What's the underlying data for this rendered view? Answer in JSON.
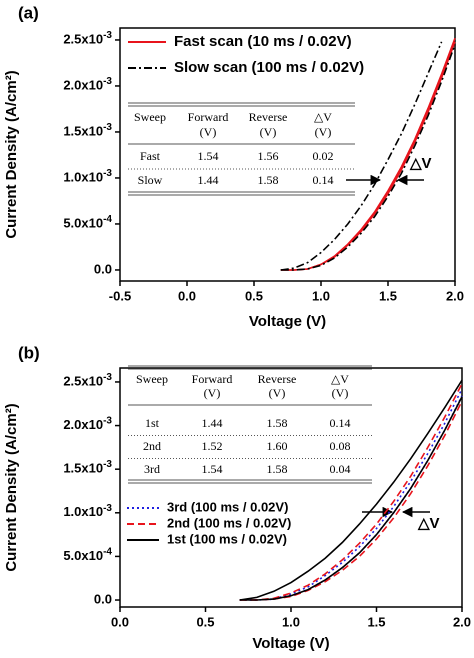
{
  "chart_data": [
    {
      "type": "line",
      "label": "(a)",
      "x_label": "Voltage (V)",
      "y_label": "Current Density (A/cm²)",
      "xlim": [
        -0.5,
        2.0
      ],
      "ylim": [
        -0.00012,
        0.00263
      ],
      "xticks": [
        -0.5,
        {
          "value": 0,
          "label": "0.0"
        },
        0.5,
        {
          "value": 1,
          "label": "1.0"
        },
        1.5,
        {
          "value": 2,
          "label": "2.0"
        }
      ],
      "yticks": [
        {
          "value": 0,
          "label": "0.0"
        },
        {
          "value": 0.0005,
          "label": "5.0x10",
          "exponent": "-4"
        },
        {
          "value": 0.001,
          "label": "1.0x10",
          "exponent": "-3"
        },
        {
          "value": 0.0015,
          "label": "1.5x10",
          "exponent": "-3"
        },
        {
          "value": 0.002,
          "label": "2.0x10",
          "exponent": "-3"
        },
        {
          "value": 0.0025,
          "label": "2.5x10",
          "exponent": "-3"
        }
      ],
      "x": [
        0.7,
        0.8,
        0.9,
        1.0,
        1.1,
        1.2,
        1.3,
        1.4,
        1.5,
        1.6,
        1.7,
        1.8,
        1.9,
        2.0
      ],
      "legend": "upper left",
      "series": [
        {
          "name": "Fast scan  (10 ms / 0.02V)",
          "color": "#e8141c",
          "dash": "solid",
          "forward": [
            0,
            0,
            1e-05,
            6e-05,
            0.00015,
            0.00028,
            0.00044,
            0.00063,
            0.00086,
            0.00112,
            0.00142,
            0.00176,
            0.00213,
            0.00252
          ],
          "reverse": [
            0,
            0,
            1e-05,
            6e-05,
            0.00014,
            0.00027,
            0.00042,
            0.00061,
            0.00083,
            0.00109,
            0.00139,
            0.00172,
            0.00209,
            0.00248
          ]
        },
        {
          "name": "Slow scan  (100 ms / 0.02V)",
          "color": "#000000",
          "dash": "dashdot",
          "forward": [
            0,
            2e-05,
            8e-05,
            0.00019,
            0.00033,
            0.0005,
            0.0007,
            0.00093,
            0.0012,
            0.00148,
            0.0018,
            0.00214,
            0.00248,
            null
          ],
          "reverse": [
            0,
            0,
            1e-05,
            5e-05,
            0.00013,
            0.00025,
            0.0004,
            0.00058,
            0.0008,
            0.00105,
            0.00135,
            0.00168,
            0.00205,
            0.00245
          ]
        }
      ],
      "table": {
        "header": [
          [
            "Sweep",
            "Forward",
            "Reverse",
            "△V"
          ],
          [
            "(V)",
            "(V)",
            "(V)"
          ]
        ],
        "rows": [
          [
            "Fast",
            "1.54",
            "1.56",
            "0.02"
          ],
          [
            "Slow",
            "1.44",
            "1.58",
            "0.14"
          ]
        ]
      },
      "annotation": "△V"
    },
    {
      "type": "line",
      "label": "(b)",
      "x_label": "Voltage (V)",
      "y_label": "Current Density (A/cm²)",
      "xlim": [
        0,
        2.0
      ],
      "ylim": [
        -8e-05,
        0.00266
      ],
      "xticks": [
        {
          "value": 0,
          "label": "0.0"
        },
        0.5,
        {
          "value": 1,
          "label": "1.0"
        },
        1.5,
        {
          "value": 2,
          "label": "2.0"
        }
      ],
      "yticks": [
        {
          "value": 0,
          "label": "0.0"
        },
        {
          "value": 0.0005,
          "label": "5.0x10",
          "exponent": "-4"
        },
        {
          "value": 0.001,
          "label": "1.0x10",
          "exponent": "-3"
        },
        {
          "value": 0.0015,
          "label": "1.5x10",
          "exponent": "-3"
        },
        {
          "value": 0.002,
          "label": "2.0x10",
          "exponent": "-3"
        },
        {
          "value": 0.0025,
          "label": "2.5x10",
          "exponent": "-3"
        }
      ],
      "x": [
        0.7,
        0.8,
        0.9,
        1.0,
        1.1,
        1.2,
        1.3,
        1.4,
        1.5,
        1.6,
        1.7,
        1.8,
        1.9,
        2.0
      ],
      "legend": "center left",
      "series": [
        {
          "name": "3rd (100 ms / 0.02V)",
          "color": "#1f1fe0",
          "dash": "dotted",
          "forward": [
            0,
            0,
            1e-05,
            7e-05,
            0.00015,
            0.00028,
            0.00043,
            0.00061,
            0.00082,
            0.00107,
            0.00136,
            0.00168,
            0.00203,
            0.00242
          ],
          "reverse": [
            0,
            0,
            1e-05,
            5e-05,
            0.00012,
            0.00023,
            0.00037,
            0.00054,
            0.00075,
            0.001,
            0.00128,
            0.0016,
            0.00195,
            0.00234
          ]
        },
        {
          "name": "2nd (100 ms / 0.02V)",
          "color": "#e8141c",
          "dash": "dashed",
          "forward": [
            0,
            0,
            2e-05,
            8e-05,
            0.00017,
            0.0003,
            0.00046,
            0.00065,
            0.00087,
            0.00113,
            0.00142,
            0.00175,
            0.0021,
            0.00248
          ],
          "reverse": [
            0,
            0,
            1e-05,
            4e-05,
            0.00011,
            0.00021,
            0.00034,
            0.0005,
            0.0007,
            0.00094,
            0.00122,
            0.00154,
            0.00189,
            0.00228
          ]
        },
        {
          "name": "1st  (100 ms / 0.02V)",
          "color": "#000000",
          "dash": "solid",
          "forward": [
            0,
            3e-05,
            0.0001,
            0.0002,
            0.00033,
            0.00048,
            0.00066,
            0.00087,
            0.0011,
            0.00135,
            0.00162,
            0.00191,
            0.00221,
            0.00252
          ],
          "reverse": [
            0,
            0,
            1e-05,
            5e-05,
            0.00012,
            0.00023,
            0.00037,
            0.00054,
            0.00075,
            0.001,
            0.00128,
            0.0016,
            0.00195,
            0.00233
          ]
        }
      ],
      "table": {
        "header": [
          [
            "Sweep",
            "Forward",
            "Reverse",
            "△V"
          ],
          [
            "(V)",
            "(V)",
            "(V)"
          ]
        ],
        "rows": [
          [
            "1st",
            "1.44",
            "1.58",
            "0.14"
          ],
          [
            "2nd",
            "1.52",
            "1.60",
            "0.08"
          ],
          [
            "3rd",
            "1.54",
            "1.58",
            "0.04"
          ]
        ]
      },
      "annotation": "△V"
    }
  ]
}
